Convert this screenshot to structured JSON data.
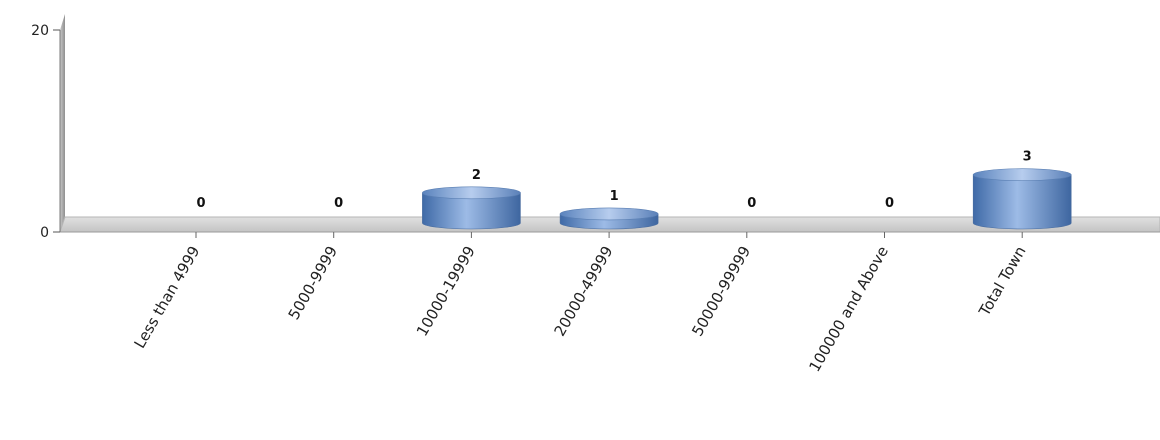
{
  "chart_data": {
    "type": "bar",
    "title": "",
    "xlabel": "",
    "ylabel": "",
    "categories": [
      "Less than 4999",
      "5000-9999",
      "10000-19999",
      "20000-49999",
      "50000-99999",
      "100000 and Above",
      "Total Town"
    ],
    "values": [
      0,
      0,
      2,
      1,
      0,
      0,
      3
    ],
    "data_labels": [
      "0",
      "0",
      "2",
      "1",
      "0",
      "0",
      "3"
    ],
    "yticks": [
      0,
      20
    ],
    "ytick_labels": [
      "0",
      "20"
    ],
    "ylim": [
      0,
      20
    ],
    "grid": false,
    "legend": "none",
    "bar_style": "3d-cylinder",
    "bar_color": "#6f95c8",
    "floor_color": "#cfcfcf"
  }
}
